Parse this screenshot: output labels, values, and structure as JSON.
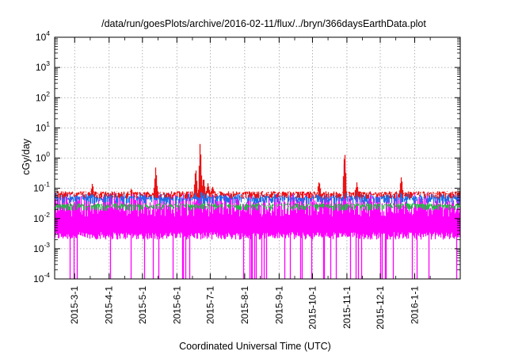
{
  "chart_data": {
    "type": "area",
    "title": "/data/run/goesPlots/archive/2016-02-11/flux/../bryn/366daysEarthData.plot",
    "xlabel": "Coordinated Universal Time (UTC)",
    "ylabel": "cGy/day",
    "x_range": [
      "2015-02-11",
      "2016-02-11"
    ],
    "ylim": [
      0.0001,
      10000
    ],
    "yscale": "log",
    "grid": true,
    "legend": "none",
    "x_ticks": [
      "2015-3-1",
      "2015-4-1",
      "2015-5-1",
      "2015-6-1",
      "2015-7-1",
      "2015-8-1",
      "2015-9-1",
      "2015-10-1",
      "2015-11-1",
      "2015-12-1",
      "2016-1-1"
    ],
    "y_ticks": [
      {
        "value": 0.0001,
        "base": "10",
        "exp": "-4"
      },
      {
        "value": 0.001,
        "base": "10",
        "exp": "-3"
      },
      {
        "value": 0.01,
        "base": "10",
        "exp": "-2"
      },
      {
        "value": 0.1,
        "base": "10",
        "exp": "-1"
      },
      {
        "value": 1,
        "base": "10",
        "exp": "0"
      },
      {
        "value": 10,
        "base": "10",
        "exp": "1"
      },
      {
        "value": 100,
        "base": "10",
        "exp": "2"
      },
      {
        "value": 1000,
        "base": "10",
        "exp": "3"
      },
      {
        "value": 10000,
        "base": "10",
        "exp": "4"
      }
    ],
    "series": [
      {
        "color": "#ee1111",
        "baseline_range": [
          0.045,
          0.065
        ],
        "spikes": [
          {
            "date": "2015-03-17",
            "value": 0.15
          },
          {
            "date": "2015-03-25",
            "value": 0.07
          },
          {
            "date": "2015-04-21",
            "value": 0.1
          },
          {
            "date": "2015-05-13",
            "value": 0.55
          },
          {
            "date": "2015-06-18",
            "value": 0.5
          },
          {
            "date": "2015-06-22",
            "value": 4.5
          },
          {
            "date": "2015-06-25",
            "value": 0.25
          },
          {
            "date": "2015-06-29",
            "value": 0.15
          },
          {
            "date": "2015-07-03",
            "value": 0.12
          },
          {
            "date": "2015-10-07",
            "value": 0.18
          },
          {
            "date": "2015-10-30",
            "value": 2.2
          },
          {
            "date": "2015-11-10",
            "value": 0.16
          },
          {
            "date": "2015-12-20",
            "value": 0.25
          }
        ]
      },
      {
        "color": "#1e6fe6",
        "baseline_range": [
          0.03,
          0.05
        ],
        "spikes": [
          {
            "date": "2015-03-17",
            "value": 0.08
          },
          {
            "date": "2015-05-13",
            "value": 0.25
          },
          {
            "date": "2015-06-18",
            "value": 0.2
          },
          {
            "date": "2015-06-22",
            "value": 1.5
          },
          {
            "date": "2015-06-25",
            "value": 0.15
          },
          {
            "date": "2015-10-07",
            "value": 0.08
          },
          {
            "date": "2015-10-30",
            "value": 1.3
          },
          {
            "date": "2015-11-10",
            "value": 0.1
          },
          {
            "date": "2015-12-20",
            "value": 0.12
          }
        ]
      },
      {
        "color": "#22bb44",
        "baseline_range": [
          0.018,
          0.026
        ],
        "spikes": []
      },
      {
        "color": "#ff00ff",
        "baseline_range": [
          0.002,
          0.02
        ],
        "dropouts_to": 0.0001,
        "spikes": [
          {
            "date": "2015-06-22",
            "value": 0.3
          },
          {
            "date": "2015-10-30",
            "value": 0.6
          }
        ]
      }
    ]
  }
}
